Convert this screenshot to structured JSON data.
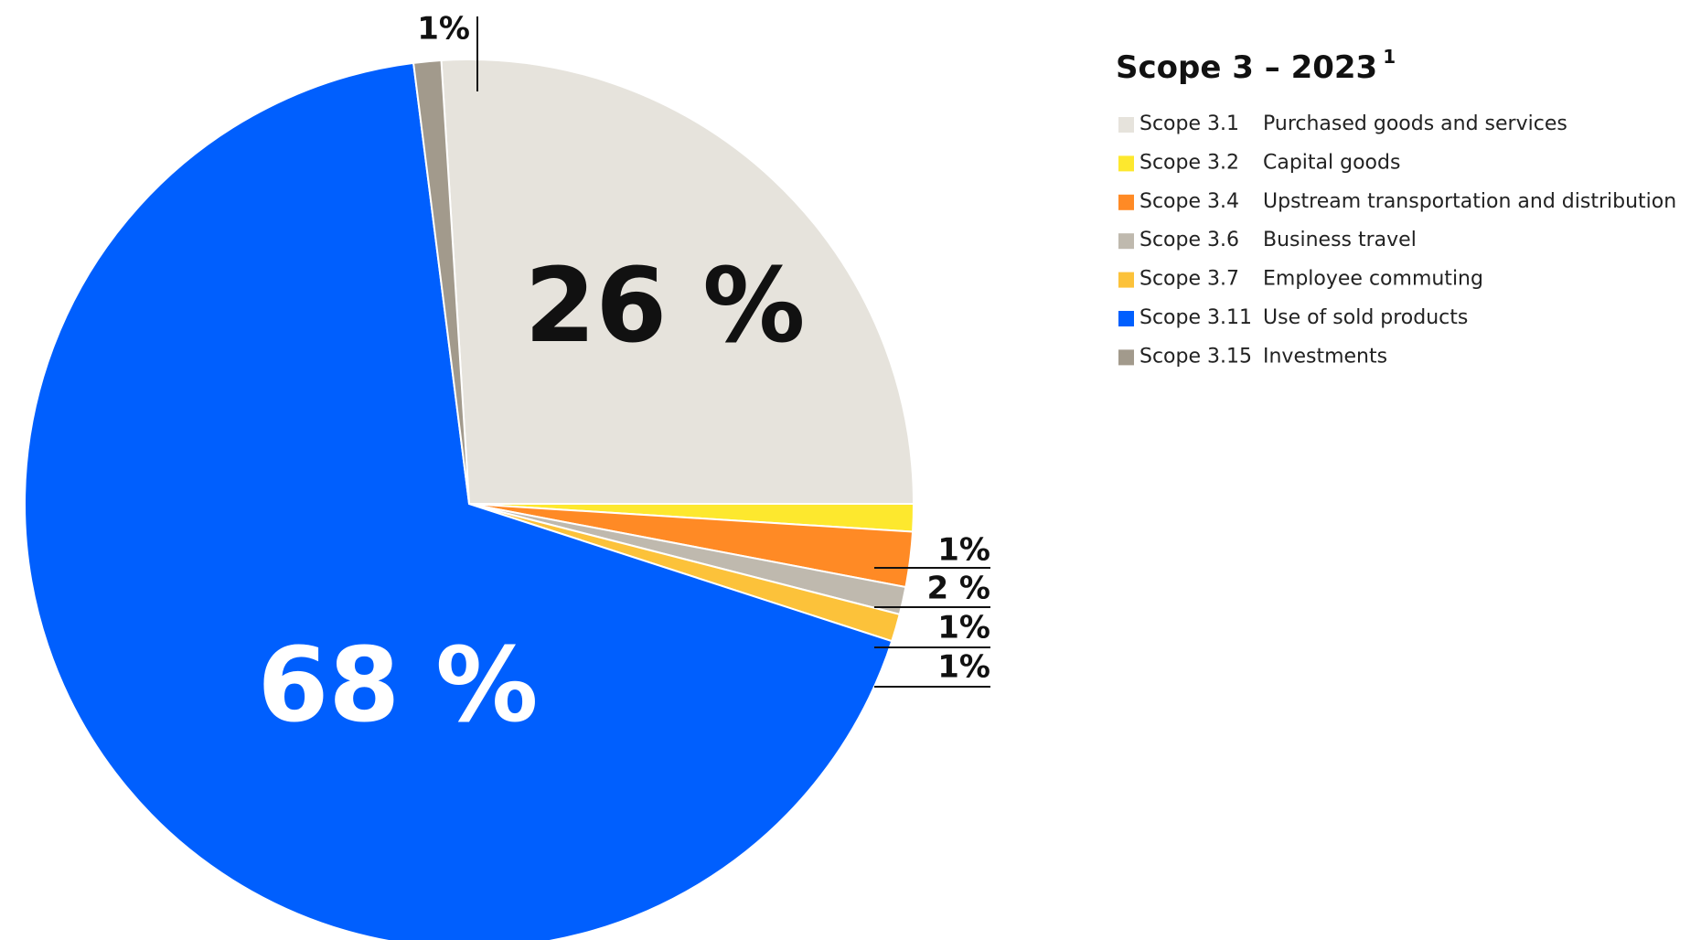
{
  "chart_data": {
    "type": "pie",
    "title": "Scope 3 – 2023",
    "title_footnote": "1",
    "categories": [
      "Scope 3.1",
      "Scope 3.2",
      "Scope 3.4",
      "Scope 3.6",
      "Scope 3.7",
      "Scope 3.11",
      "Scope 3.15"
    ],
    "descriptions": [
      "Purchased goods and services",
      "Capital goods",
      "Upstream transportation and distribution",
      "Business travel",
      "Employee commuting",
      "Use of sold products",
      "Investments"
    ],
    "values": [
      26,
      1,
      2,
      1,
      1,
      68,
      1
    ],
    "value_labels": [
      "26 %",
      "1%",
      "2 %",
      "1%",
      "1%",
      "68 %",
      "1%"
    ],
    "colors": [
      "#e6e3dc",
      "#fde82e",
      "#ff8a25",
      "#bfb9ae",
      "#fcc23a",
      "#005ffe",
      "#a29a8c"
    ]
  }
}
